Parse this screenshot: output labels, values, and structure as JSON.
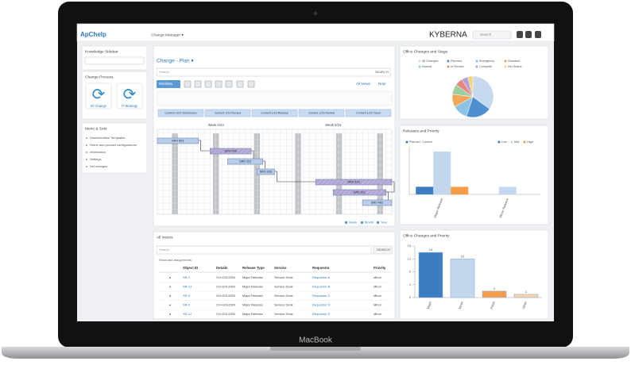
{
  "device_label": "MacBook",
  "topbar": {
    "logo": "ApChelp",
    "menu": "Change Manager ▾",
    "brand": "KYBERNA",
    "search": "Search"
  },
  "sidebar": {
    "knowledge": {
      "title": "Knowledge Sidebar"
    },
    "process": {
      "title": "Change Process",
      "items": [
        "ID Change",
        "IT Strategy"
      ]
    },
    "menu": {
      "title": "Menu & Sets",
      "items": [
        "Dissemination Templates",
        "Home and product configurations",
        "Information",
        "Settings",
        "Set changes"
      ]
    }
  },
  "plan": {
    "title": "Change - Plan ▾",
    "search": "Search",
    "search_button": "SEARCH",
    "toolbar": "Workflow",
    "links": [
      "All Views",
      "Repr"
    ],
    "columns": [
      "Content 1/23 Submission",
      "Content 1/23 Review",
      "Content 1/23 Release",
      "Content 1/23 Review",
      "Content 1/23 Ticket"
    ],
    "weeks": [
      "Week 1/23",
      "Week 2/23"
    ],
    "xlim": [
      0,
      40
    ],
    "tasks": [
      {
        "label": "SR0 001",
        "start": 0,
        "end": 7,
        "color": "#b9cdea"
      },
      {
        "label": "SR0 002",
        "start": 9,
        "end": 16,
        "color": "#b8b0d8"
      },
      {
        "label": "SR0 112",
        "start": 12,
        "end": 18,
        "color": "#b9cdea"
      },
      {
        "label": "SR0 203",
        "start": 17,
        "end": 20,
        "color": "#b9cdea"
      },
      {
        "label": "SR0 310",
        "start": 27,
        "end": 40,
        "color": "#b8b0d8"
      },
      {
        "label": "SR0 311",
        "start": 30,
        "end": 39,
        "color": "#b8b0d8"
      },
      {
        "label": "SR0 402",
        "start": 35,
        "end": 40,
        "color": "#b9cdea"
      }
    ],
    "footer": [
      "Week",
      "Month",
      "Year"
    ]
  },
  "issues": {
    "title": "All Issues",
    "search": "Search",
    "search_button": "SEARCH",
    "subtitle": "Show last assignments",
    "columns": [
      "Object ID",
      "Details",
      "Release Type",
      "Service",
      "Requestor",
      "Priority"
    ],
    "rows": [
      [
        "SR-1",
        "CH-GOLDEN",
        "Major Release",
        "Service Desk",
        "Requestor A",
        "Minor"
      ],
      [
        "SR-13",
        "CH-GOLDEN",
        "Major Release",
        "Service Desk",
        "Requestor B",
        "Minor"
      ],
      [
        "SR-5",
        "CH-GOLDEN",
        "Major Release",
        "Service Desk",
        "Requestor C",
        "Minor"
      ],
      [
        "SR-3",
        "CH-GOLDEN",
        "Major Release",
        "Service Desk",
        "Requestor D",
        "Minor"
      ],
      [
        "SR-12",
        "CH-GOLDEN",
        "Major Release",
        "Service Desk",
        "Requestor E",
        "Minor"
      ]
    ]
  },
  "pie": {
    "title": "Office Changes and Stage",
    "categories": [
      "All Changes",
      "Planned",
      "Emergency",
      "Standard",
      "Normal",
      "In Review",
      "Complete",
      "Set Status"
    ],
    "values": [
      35,
      20,
      12,
      10,
      8,
      6,
      5,
      4
    ],
    "colors": [
      "#c7d9ee",
      "#4f8fd0",
      "#8ec3e8",
      "#f2a65a",
      "#9ad0a0",
      "#e8877f",
      "#b5a3d6",
      "#f4d47a"
    ]
  },
  "releases": {
    "title": "Releases and Priority",
    "status_legend": [
      "Planned",
      "Current"
    ],
    "categories": [
      "Major Release",
      "Minor Release"
    ],
    "ylim": [
      0,
      100
    ],
    "series": [
      {
        "name": "Low",
        "color": "#3b7dc0",
        "values": [
          16,
          null
        ]
      },
      {
        "name": "Mid",
        "color": "#c3d7ef",
        "values": [
          90,
          16
        ]
      },
      {
        "name": "High",
        "color": "#f39c4a",
        "values": [
          16,
          null
        ]
      }
    ]
  },
  "priority": {
    "title": "Office Changes and Priority",
    "categories": [
      "Major",
      "Minor",
      "Patch",
      "Other"
    ],
    "values": [
      14,
      12,
      2,
      1
    ],
    "colors": [
      "#3b7dc0",
      "#c3d7ef",
      "#f39c4a",
      "#f8d3a8"
    ],
    "ylim": [
      0,
      16
    ],
    "yticks": [
      0,
      4,
      8,
      12,
      16
    ]
  }
}
